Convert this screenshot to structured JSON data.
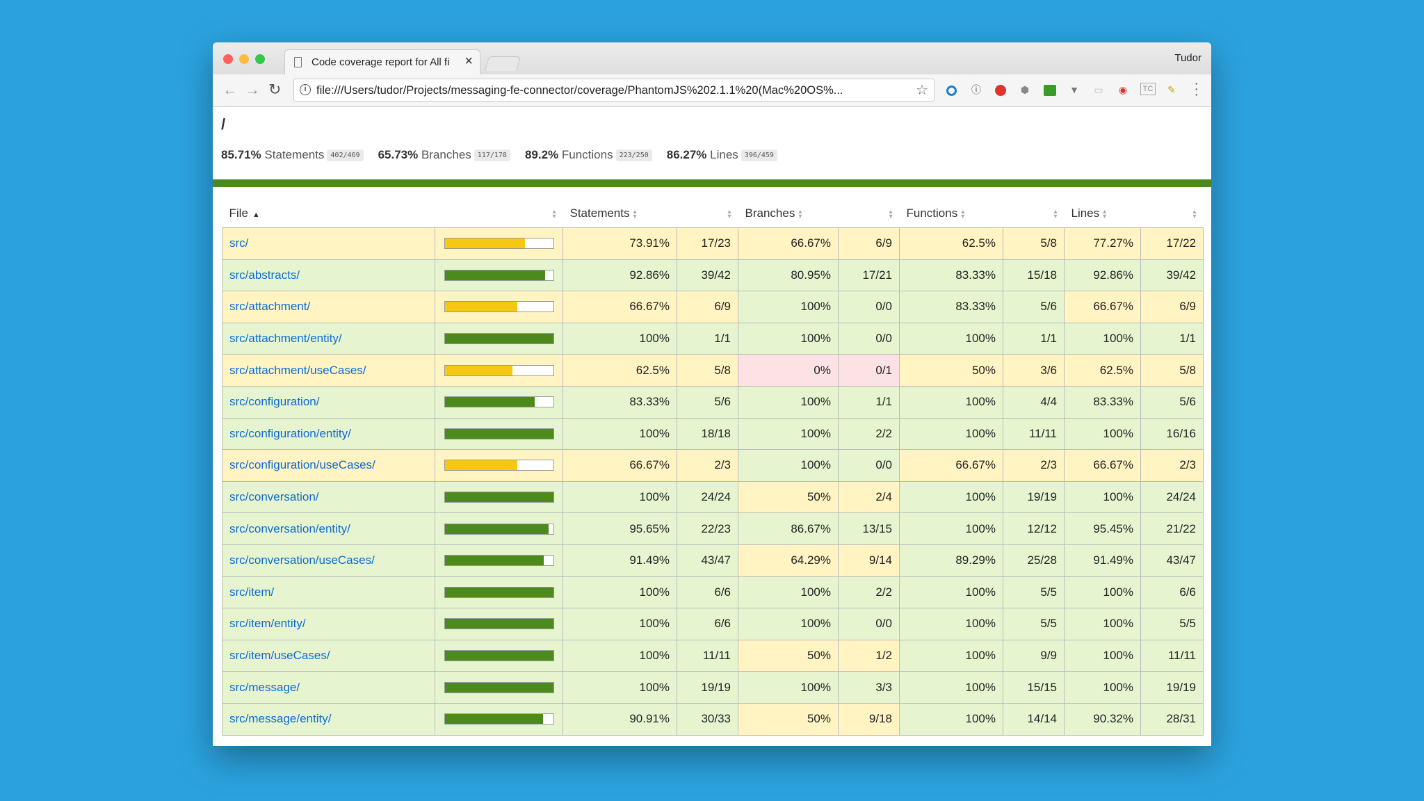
{
  "browser": {
    "tab_title": "Code coverage report for All fi",
    "user": "Tudor",
    "url": "file:///Users/tudor/Projects/messaging-fe-connector/coverage/PhantomJS%202.1.1%20(Mac%20OS%...",
    "extensions": [
      "circle-blue-icon",
      "info-circle-icon",
      "blocker-red-icon",
      "shield-icon",
      "green-ext-icon",
      "vue-icon",
      "chat-icon",
      "record-icon",
      "tc-icon",
      "pencil-icon"
    ]
  },
  "report": {
    "breadcrumb": "/",
    "summary": [
      {
        "pct": "85.71%",
        "label": "Statements",
        "frac": "402/469"
      },
      {
        "pct": "65.73%",
        "label": "Branches",
        "frac": "117/178"
      },
      {
        "pct": "89.2%",
        "label": "Functions",
        "frac": "223/250"
      },
      {
        "pct": "86.27%",
        "label": "Lines",
        "frac": "396/459"
      }
    ],
    "headers": {
      "file": "File",
      "statements": "Statements",
      "branches": "Branches",
      "functions": "Functions",
      "lines": "Lines"
    },
    "colors": {
      "high_bar": "#4d8a1c",
      "medium_bar": "#f6c811",
      "high_bg": "#e6f5d0",
      "medium_bg": "#fff4c2",
      "low_bg": "#fce1e5"
    },
    "rows": [
      {
        "file": "src/",
        "bar": 0.7391,
        "stmt_pct": "73.91%",
        "stmt": "17/23",
        "br_pct": "66.67%",
        "br": "6/9",
        "fn_pct": "62.5%",
        "fn": "5/8",
        "ln_pct": "77.27%",
        "ln": "17/22",
        "c": [
          "med",
          "med",
          "med",
          "med"
        ]
      },
      {
        "file": "src/abstracts/",
        "bar": 0.9286,
        "stmt_pct": "92.86%",
        "stmt": "39/42",
        "br_pct": "80.95%",
        "br": "17/21",
        "fn_pct": "83.33%",
        "fn": "15/18",
        "ln_pct": "92.86%",
        "ln": "39/42",
        "c": [
          "high",
          "high",
          "high",
          "high"
        ]
      },
      {
        "file": "src/attachment/",
        "bar": 0.6667,
        "stmt_pct": "66.67%",
        "stmt": "6/9",
        "br_pct": "100%",
        "br": "0/0",
        "fn_pct": "83.33%",
        "fn": "5/6",
        "ln_pct": "66.67%",
        "ln": "6/9",
        "c": [
          "med",
          "high",
          "high",
          "med"
        ]
      },
      {
        "file": "src/attachment/entity/",
        "bar": 1,
        "stmt_pct": "100%",
        "stmt": "1/1",
        "br_pct": "100%",
        "br": "0/0",
        "fn_pct": "100%",
        "fn": "1/1",
        "ln_pct": "100%",
        "ln": "1/1",
        "c": [
          "high",
          "high",
          "high",
          "high"
        ]
      },
      {
        "file": "src/attachment/useCases/",
        "bar": 0.625,
        "stmt_pct": "62.5%",
        "stmt": "5/8",
        "br_pct": "0%",
        "br": "0/1",
        "fn_pct": "50%",
        "fn": "3/6",
        "ln_pct": "62.5%",
        "ln": "5/8",
        "c": [
          "med",
          "low",
          "med",
          "med"
        ]
      },
      {
        "file": "src/configuration/",
        "bar": 0.8333,
        "stmt_pct": "83.33%",
        "stmt": "5/6",
        "br_pct": "100%",
        "br": "1/1",
        "fn_pct": "100%",
        "fn": "4/4",
        "ln_pct": "83.33%",
        "ln": "5/6",
        "c": [
          "high",
          "high",
          "high",
          "high"
        ]
      },
      {
        "file": "src/configuration/entity/",
        "bar": 1,
        "stmt_pct": "100%",
        "stmt": "18/18",
        "br_pct": "100%",
        "br": "2/2",
        "fn_pct": "100%",
        "fn": "11/11",
        "ln_pct": "100%",
        "ln": "16/16",
        "c": [
          "high",
          "high",
          "high",
          "high"
        ]
      },
      {
        "file": "src/configuration/useCases/",
        "bar": 0.6667,
        "stmt_pct": "66.67%",
        "stmt": "2/3",
        "br_pct": "100%",
        "br": "0/0",
        "fn_pct": "66.67%",
        "fn": "2/3",
        "ln_pct": "66.67%",
        "ln": "2/3",
        "c": [
          "med",
          "high",
          "med",
          "med"
        ]
      },
      {
        "file": "src/conversation/",
        "bar": 1,
        "stmt_pct": "100%",
        "stmt": "24/24",
        "br_pct": "50%",
        "br": "2/4",
        "fn_pct": "100%",
        "fn": "19/19",
        "ln_pct": "100%",
        "ln": "24/24",
        "c": [
          "high",
          "med",
          "high",
          "high"
        ]
      },
      {
        "file": "src/conversation/entity/",
        "bar": 0.9565,
        "stmt_pct": "95.65%",
        "stmt": "22/23",
        "br_pct": "86.67%",
        "br": "13/15",
        "fn_pct": "100%",
        "fn": "12/12",
        "ln_pct": "95.45%",
        "ln": "21/22",
        "c": [
          "high",
          "high",
          "high",
          "high"
        ]
      },
      {
        "file": "src/conversation/useCases/",
        "bar": 0.9149,
        "stmt_pct": "91.49%",
        "stmt": "43/47",
        "br_pct": "64.29%",
        "br": "9/14",
        "fn_pct": "89.29%",
        "fn": "25/28",
        "ln_pct": "91.49%",
        "ln": "43/47",
        "c": [
          "high",
          "med",
          "high",
          "high"
        ]
      },
      {
        "file": "src/item/",
        "bar": 1,
        "stmt_pct": "100%",
        "stmt": "6/6",
        "br_pct": "100%",
        "br": "2/2",
        "fn_pct": "100%",
        "fn": "5/5",
        "ln_pct": "100%",
        "ln": "6/6",
        "c": [
          "high",
          "high",
          "high",
          "high"
        ]
      },
      {
        "file": "src/item/entity/",
        "bar": 1,
        "stmt_pct": "100%",
        "stmt": "6/6",
        "br_pct": "100%",
        "br": "0/0",
        "fn_pct": "100%",
        "fn": "5/5",
        "ln_pct": "100%",
        "ln": "5/5",
        "c": [
          "high",
          "high",
          "high",
          "high"
        ]
      },
      {
        "file": "src/item/useCases/",
        "bar": 1,
        "stmt_pct": "100%",
        "stmt": "11/11",
        "br_pct": "50%",
        "br": "1/2",
        "fn_pct": "100%",
        "fn": "9/9",
        "ln_pct": "100%",
        "ln": "11/11",
        "c": [
          "high",
          "med",
          "high",
          "high"
        ]
      },
      {
        "file": "src/message/",
        "bar": 1,
        "stmt_pct": "100%",
        "stmt": "19/19",
        "br_pct": "100%",
        "br": "3/3",
        "fn_pct": "100%",
        "fn": "15/15",
        "ln_pct": "100%",
        "ln": "19/19",
        "c": [
          "high",
          "high",
          "high",
          "high"
        ]
      },
      {
        "file": "src/message/entity/",
        "bar": 0.9091,
        "stmt_pct": "90.91%",
        "stmt": "30/33",
        "br_pct": "50%",
        "br": "9/18",
        "fn_pct": "100%",
        "fn": "14/14",
        "ln_pct": "90.32%",
        "ln": "28/31",
        "c": [
          "high",
          "med",
          "high",
          "high"
        ]
      }
    ]
  }
}
